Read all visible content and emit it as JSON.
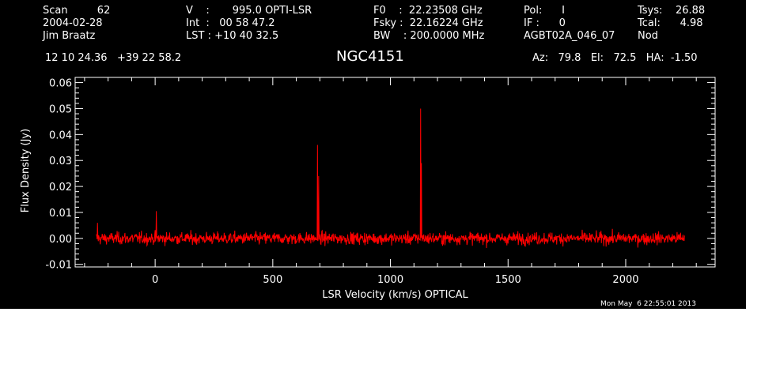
{
  "header": {
    "scan": "Scan         62",
    "date": "2004-02-28",
    "observer": "Jim Braatz",
    "velocity": "V    :       995.0 OPTI-LSR",
    "integration": "Int  :   00 58 47.2",
    "lst": "LST : +10 40 32.5",
    "f0": "F0    :  22.23508 GHz",
    "fsky": "Fsky :  22.16224 GHz",
    "bw": "BW    : 200.0000 MHz",
    "pol": "Pol:      I",
    "if": "IF :      0",
    "project": "AGBT02A_046_07",
    "tsys": "Tsys:    26.88",
    "tcal": "Tcal:      4.98",
    "procedure": "Nod",
    "coords": "12 10 24.36   +39 22 58.2",
    "source": "NGC4151",
    "azel": "Az:   79.8   El:   72.5   HA:  -1.50",
    "timestamp": "Mon May  6 22:55:01 2013"
  },
  "colors": {
    "background": "#000000",
    "axes": "#ffffff",
    "series": "#ff0000"
  },
  "chart_data": {
    "type": "line",
    "title": "NGC4151",
    "xlabel": "LSR Velocity (km/s) OPTICAL",
    "ylabel": "Flux Density (Jy)",
    "xlim": [
      -340,
      2380
    ],
    "ylim": [
      -0.011,
      0.062
    ],
    "xticks": [
      0,
      500,
      1000,
      1500,
      2000
    ],
    "yticks": [
      -0.01,
      0.0,
      0.01,
      0.02,
      0.03,
      0.04,
      0.05,
      0.06
    ],
    "xtick_labels": [
      "0",
      "500",
      "1000",
      "1500",
      "2000"
    ],
    "ytick_labels": [
      "-0.01",
      "0.00",
      "0.01",
      "0.02",
      "0.03",
      "0.04",
      "0.05",
      "0.06"
    ],
    "grid": false,
    "series": [
      {
        "x_range": [
          -250,
          2250
        ],
        "baseline": 0.0,
        "noise_rms": 0.0022,
        "peaks": [
          {
            "x": 5,
            "y": 0.0105
          },
          {
            "x": 690,
            "y": 0.036
          },
          {
            "x": 695,
            "y": 0.024
          },
          {
            "x": 1128,
            "y": 0.05
          },
          {
            "x": 1132,
            "y": 0.029
          },
          {
            "x": -245,
            "y": 0.006
          }
        ]
      }
    ]
  }
}
